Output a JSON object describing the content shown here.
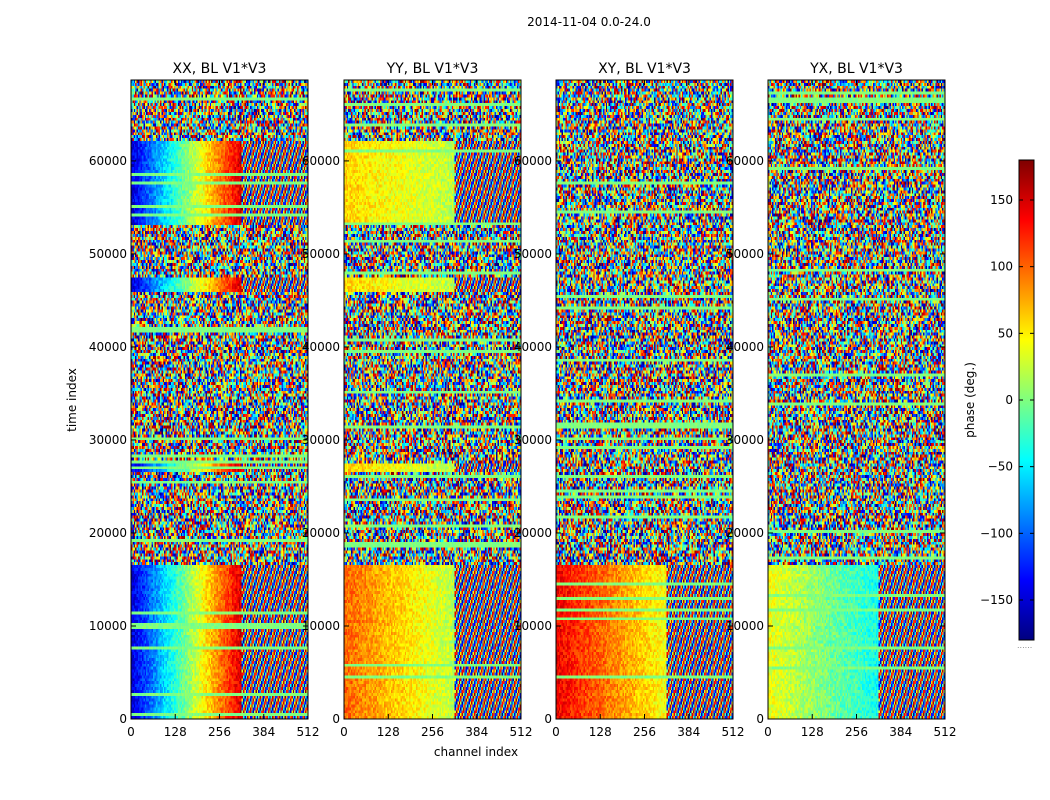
{
  "chart_data": {
    "type": "heatmap",
    "title": "2014-11-04 0.0-24.0",
    "xlabel": "channel index",
    "ylabel": "time index",
    "xlim": [
      0,
      512
    ],
    "ylim": [
      0,
      68700
    ],
    "x_ticks": [
      0,
      128,
      256,
      384,
      512
    ],
    "x_tick_labels": [
      "0",
      "128",
      "256",
      "384",
      "512"
    ],
    "y_ticks": [
      0,
      10000,
      20000,
      30000,
      40000,
      50000,
      60000
    ],
    "y_tick_labels": [
      "0",
      "10000",
      "20000",
      "30000",
      "40000",
      "50000",
      "60000"
    ],
    "colorbar": {
      "label": "phase (deg.)",
      "range": [
        -180,
        180
      ],
      "ticks": [
        -150,
        -100,
        -50,
        0,
        50,
        100,
        150
      ],
      "tick_labels": [
        "−150",
        "−100",
        "−50",
        "0",
        "50",
        "100",
        "150"
      ],
      "colormap": "jet",
      "colors": [
        "#00007f",
        "#0000ff",
        "#007fff",
        "#00ffff",
        "#7fff7f",
        "#ffff00",
        "#ff7f00",
        "#ff0000",
        "#7f0000"
      ]
    },
    "panels": [
      {
        "title": "XX, BL V1*V3",
        "description": "phase vs channel and time",
        "coherent_segments": [
          {
            "t_range": [
              0,
              16500
            ],
            "phase_start_deg": -150,
            "phase_end_deg": 150,
            "channels": [
              0,
              320
            ]
          },
          {
            "t_range": [
              26500,
              27500
            ],
            "phase_start_deg": -150,
            "phase_end_deg": 150,
            "channels": [
              0,
              320
            ]
          },
          {
            "t_range": [
              46000,
              47500
            ],
            "phase_start_deg": -150,
            "phase_end_deg": 150,
            "channels": [
              0,
              320
            ]
          },
          {
            "t_range": [
              53000,
              62000
            ],
            "phase_start_deg": -150,
            "phase_end_deg": 150,
            "channels": [
              0,
              320
            ]
          }
        ]
      },
      {
        "title": "YY, BL V1*V3",
        "description": "phase vs channel and time",
        "coherent_segments": [
          {
            "t_range": [
              0,
              16500
            ],
            "phase_start_deg": 100,
            "phase_end_deg": 20,
            "channels": [
              0,
              320
            ]
          },
          {
            "t_range": [
              26500,
              27500
            ],
            "phase_start_deg": 60,
            "phase_end_deg": 20,
            "channels": [
              0,
              320
            ]
          },
          {
            "t_range": [
              46000,
              47500
            ],
            "phase_start_deg": 60,
            "phase_end_deg": 20,
            "channels": [
              0,
              320
            ]
          },
          {
            "t_range": [
              53000,
              62000
            ],
            "phase_start_deg": 60,
            "phase_end_deg": 20,
            "channels": [
              0,
              320
            ]
          }
        ]
      },
      {
        "title": "XY, BL V1*V3",
        "description": "phase vs channel and time",
        "coherent_segments": [
          {
            "t_range": [
              0,
              16500
            ],
            "phase_start_deg": 140,
            "phase_end_deg": 40,
            "channels": [
              0,
              320
            ]
          }
        ]
      },
      {
        "title": "YX, BL V1*V3",
        "description": "phase vs channel and time",
        "coherent_segments": [
          {
            "t_range": [
              0,
              16500
            ],
            "phase_start_deg": 40,
            "phase_end_deg": -40,
            "channels": [
              0,
              320
            ]
          }
        ]
      }
    ]
  }
}
